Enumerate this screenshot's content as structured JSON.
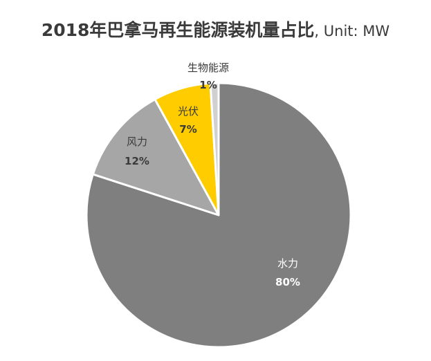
{
  "chart_data": {
    "type": "pie",
    "title": "2018年巴拿马再生能源装机量占比",
    "unit": ", Unit: MW",
    "slices": [
      {
        "label": "水力",
        "value": 80,
        "display": "80%",
        "color": "#7f7f7f",
        "text_color": "#ffffff"
      },
      {
        "label": "风力",
        "value": 12,
        "display": "12%",
        "color": "#a6a6a6",
        "text_color": "#3a3a3a"
      },
      {
        "label": "光伏",
        "value": 7,
        "display": "7%",
        "color": "#ffcc00",
        "text_color": "#3a3a3a"
      },
      {
        "label": "生物能源",
        "value": 1,
        "display": "1%",
        "color": "#d0d0d0",
        "text_color": "#3a3a3a"
      }
    ]
  }
}
